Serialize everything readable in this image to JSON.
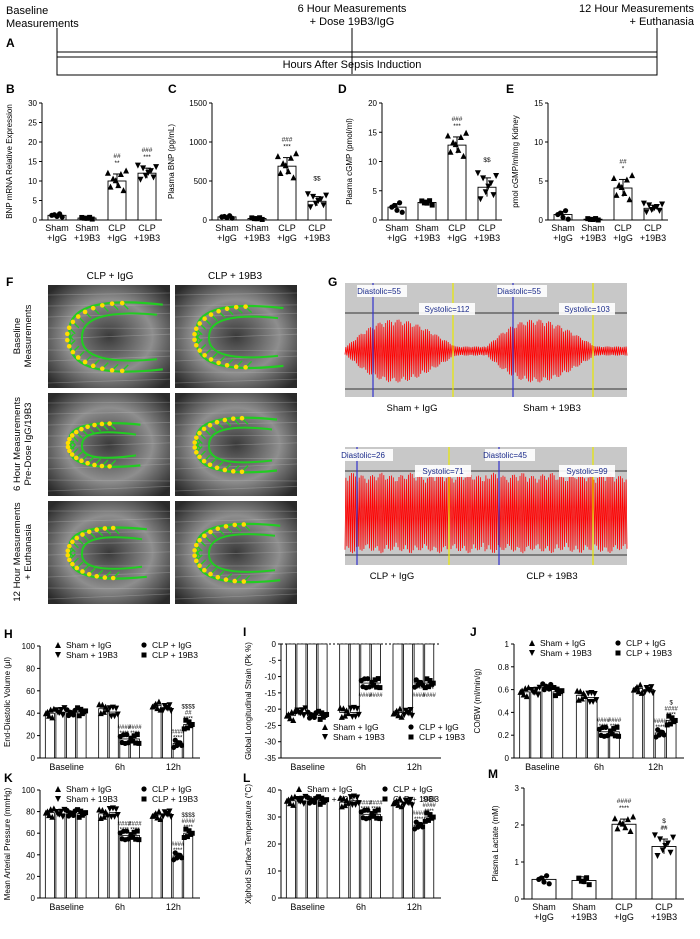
{
  "figure": {
    "timeline": {
      "panel_letter": "A",
      "left_label": [
        "Baseline",
        "Measurements"
      ],
      "mid_label": [
        "6 Hour Measurements",
        "+ Dose 19B3/IgG"
      ],
      "right_label": [
        "12 Hour Measurements",
        "+ Euthanasia"
      ],
      "axis_label": "Hours After Sepsis Induction"
    },
    "group_labels": {
      "sham_igg": [
        "Sham",
        "+IgG"
      ],
      "sham_19b3": [
        "Sham",
        "+19B3"
      ],
      "clp_igg": [
        "CLP",
        "+IgG"
      ],
      "clp_19b3": [
        "CLP",
        "+19B3"
      ]
    },
    "panel_f": {
      "letter": "F",
      "col_titles": [
        "CLP + IgG",
        "CLP + 19B3"
      ],
      "row_labels": [
        [
          "Baseline",
          "Measurements"
        ],
        [
          "6 Hour Measurements",
          "Pre-Dose IgG/19B3"
        ],
        [
          "12 Hour Measurements",
          "+ Euthanasia"
        ]
      ]
    },
    "panel_g": {
      "letter": "G",
      "traces": [
        {
          "caption": "Sham + IgG",
          "diastolic": "Diastolic=55",
          "systolic": "Systolic=112"
        },
        {
          "caption": "Sham + 19B3",
          "diastolic": "Diastolic=55",
          "systolic": "Systolic=103"
        },
        {
          "caption": "CLP + IgG",
          "diastolic": "Diastolic=26",
          "systolic": "Systolic=71"
        },
        {
          "caption": "CLP + 19B3",
          "diastolic": "Diastolic=45",
          "systolic": "Systolic=99"
        }
      ]
    },
    "legend_entries": [
      "Sham + IgG",
      "Sham + 19B3",
      "CLP + IgG",
      "CLP + 19B3"
    ],
    "timepoints": [
      "Baseline",
      "6h",
      "12h"
    ],
    "colors": {
      "trace": "#ff0000",
      "trace_bg": "#c8c8c8",
      "dia_line": "#3333cc",
      "sys_line": "#e8e800",
      "tracking": "#22cc22",
      "tracking_dot": "#ffdd00"
    }
  },
  "chart_data": [
    {
      "panel": "B",
      "type": "bar",
      "ylabel": "BNP mRNA Relative Expression",
      "ylim": [
        0,
        30
      ],
      "yticks": [
        0,
        5,
        10,
        15,
        20,
        25,
        30
      ],
      "categories": [
        "Sham +IgG",
        "Sham +19B3",
        "CLP +IgG",
        "CLP +19B3"
      ],
      "values": [
        1.2,
        0.5,
        10.0,
        12.0
      ],
      "errors": [
        0.3,
        0.2,
        1.8,
        1.3
      ],
      "annotations": [
        [
          "",
          ""
        ],
        [
          "",
          ""
        ],
        [
          "##",
          "**"
        ],
        [
          "###",
          "***"
        ]
      ]
    },
    {
      "panel": "C",
      "type": "bar",
      "ylabel": "Plasma BNP (pg/mL)",
      "ylim": [
        0,
        1500
      ],
      "yticks": [
        0,
        500,
        1000,
        1500
      ],
      "categories": [
        "Sham +IgG",
        "Sham +19B3",
        "CLP +IgG",
        "CLP +19B3"
      ],
      "values": [
        40,
        20,
        690,
        240
      ],
      "errors": [
        8,
        5,
        110,
        60
      ],
      "annotations": [
        [
          "",
          ""
        ],
        [
          "",
          ""
        ],
        [
          "###",
          "***"
        ],
        [
          "$$",
          ""
        ]
      ]
    },
    {
      "panel": "D",
      "type": "bar",
      "ylabel": "Plasma cGMP (pmol/ml)",
      "ylim": [
        0,
        20
      ],
      "yticks": [
        0,
        5,
        10,
        15,
        20
      ],
      "categories": [
        "Sham +IgG",
        "Sham +19B3",
        "CLP +IgG",
        "CLP +19B3"
      ],
      "values": [
        2.2,
        3.0,
        12.8,
        5.6
      ],
      "errors": [
        0.6,
        0.4,
        1.4,
        1.6
      ],
      "annotations": [
        [
          "",
          ""
        ],
        [
          "",
          ""
        ],
        [
          "###",
          "***"
        ],
        [
          "$$",
          ""
        ]
      ]
    },
    {
      "panel": "E",
      "type": "bar",
      "ylabel": "pmol cGMP/ml/mg Kidney",
      "ylim": [
        0,
        15
      ],
      "yticks": [
        0,
        5,
        10,
        15
      ],
      "categories": [
        "Sham +IgG",
        "Sham +19B3",
        "CLP +IgG",
        "CLP +19B3"
      ],
      "values": [
        0.7,
        0.1,
        4.1,
        1.5
      ],
      "errors": [
        0.4,
        0.05,
        1.1,
        0.4
      ],
      "annotations": [
        [
          "",
          ""
        ],
        [
          "",
          ""
        ],
        [
          "##",
          "*"
        ],
        [
          "",
          ""
        ]
      ]
    },
    {
      "panel": "H",
      "type": "bar",
      "ylabel": "End-Diastolic Volume (μl)",
      "ylim": [
        0,
        100
      ],
      "yticks": [
        0,
        20,
        40,
        60,
        80,
        100
      ],
      "categories": [
        "Baseline",
        "6h",
        "12h"
      ],
      "series": [
        {
          "name": "Sham + IgG",
          "values": [
            40,
            44,
            47
          ]
        },
        {
          "name": "Sham + 19B3",
          "values": [
            41,
            41,
            45
          ]
        },
        {
          "name": "CLP + IgG",
          "values": [
            40,
            17,
            13
          ]
        },
        {
          "name": "CLP + 19B3",
          "values": [
            41,
            17,
            30
          ]
        }
      ],
      "annotations": [
        [
          "",
          "",
          "",
          ""
        ],
        [
          "",
          "",
          "####\n****",
          "####\n****"
        ],
        [
          "",
          "",
          "####\n****",
          "$$$$\n##\n****"
        ]
      ]
    },
    {
      "panel": "I",
      "type": "bar",
      "ylabel": "Global Longitudinal Strain (Pk %)",
      "ylim": [
        -35,
        0
      ],
      "yticks": [
        0,
        -5,
        -10,
        -15,
        -20,
        -25,
        -30,
        -35
      ],
      "categories": [
        "Baseline",
        "6h",
        "12h"
      ],
      "series": [
        {
          "name": "Sham + IgG",
          "values": [
            -22,
            -21,
            -21
          ]
        },
        {
          "name": "Sham + 19B3",
          "values": [
            -21,
            -21,
            -21
          ]
        },
        {
          "name": "CLP + IgG",
          "values": [
            -22,
            -12,
            -12
          ]
        },
        {
          "name": "CLP + 19B3",
          "values": [
            -22,
            -12,
            -12
          ]
        }
      ],
      "annotations": [
        [
          "",
          "",
          "",
          ""
        ],
        [
          "",
          "",
          "****\n####",
          "****\n####"
        ],
        [
          "",
          "",
          "****\n####",
          "****\n####"
        ]
      ]
    },
    {
      "panel": "J",
      "type": "bar",
      "ylabel": "CO/BW (ml/min/g)",
      "ylim": [
        0,
        1.0
      ],
      "yticks": [
        0,
        0.2,
        0.4,
        0.6,
        0.8,
        1.0
      ],
      "categories": [
        "Baseline",
        "6h",
        "12h"
      ],
      "series": [
        {
          "name": "Sham + IgG",
          "values": [
            0.58,
            0.55,
            0.61
          ]
        },
        {
          "name": "Sham + 19B3",
          "values": [
            0.58,
            0.53,
            0.6
          ]
        },
        {
          "name": "CLP + IgG",
          "values": [
            0.62,
            0.23,
            0.22
          ]
        },
        {
          "name": "CLP + 19B3",
          "values": [
            0.58,
            0.23,
            0.33
          ]
        }
      ],
      "annotations": [
        [
          "",
          "",
          "",
          ""
        ],
        [
          "",
          "",
          "####\n****",
          "####\n****"
        ],
        [
          "",
          "",
          "####\n****",
          "$\n####\n****"
        ]
      ]
    },
    {
      "panel": "K",
      "type": "bar",
      "ylabel": "Mean Arterial Pressure (mmHg)",
      "ylim": [
        0,
        100
      ],
      "yticks": [
        0,
        20,
        40,
        60,
        80,
        100
      ],
      "categories": [
        "Baseline",
        "6h",
        "12h"
      ],
      "series": [
        {
          "name": "Sham + IgG",
          "values": [
            79,
            78,
            77
          ]
        },
        {
          "name": "Sham + 19B3",
          "values": [
            78,
            79,
            78
          ]
        },
        {
          "name": "CLP + IgG",
          "values": [
            78,
            58,
            39
          ]
        },
        {
          "name": "CLP + 19B3",
          "values": [
            78,
            58,
            60
          ]
        }
      ],
      "annotations": [
        [
          "",
          "",
          "",
          ""
        ],
        [
          "",
          "",
          "####\n****",
          "####\n****"
        ],
        [
          "",
          "",
          "####\n****",
          "$$$$\n####\n****"
        ]
      ]
    },
    {
      "panel": "L",
      "type": "bar",
      "ylabel": "Xiphoid Surface Temperature (°C)",
      "ylim": [
        0,
        40
      ],
      "yticks": [
        0,
        10,
        20,
        30,
        40
      ],
      "categories": [
        "Baseline",
        "6h",
        "12h"
      ],
      "series": [
        {
          "name": "Sham + IgG",
          "values": [
            36,
            35.5,
            35.5
          ]
        },
        {
          "name": "Sham + 19B3",
          "values": [
            36,
            36,
            35.5
          ]
        },
        {
          "name": "CLP + IgG",
          "values": [
            36,
            31,
            27
          ]
        },
        {
          "name": "CLP + 19B3",
          "values": [
            36,
            31,
            30
          ]
        }
      ],
      "annotations": [
        [
          "",
          "",
          "",
          ""
        ],
        [
          "",
          "",
          "####\n****",
          "####\n****"
        ],
        [
          "",
          "",
          "####\n****",
          "$$$$\n####\n****"
        ]
      ]
    },
    {
      "panel": "M",
      "type": "bar",
      "ylabel": "Plasma Lactate (mM)",
      "ylim": [
        0,
        3
      ],
      "yticks": [
        0,
        1,
        2,
        3
      ],
      "categories": [
        "Sham +IgG",
        "Sham +19B3",
        "CLP +IgG",
        "CLP +19B3"
      ],
      "values": [
        0.53,
        0.5,
        2.02,
        1.42
      ],
      "errors": [
        0.08,
        0.1,
        0.14,
        0.2
      ],
      "annotations": [
        [
          "",
          ""
        ],
        [
          "",
          ""
        ],
        [
          "####",
          "****"
        ],
        [
          "$\n##",
          "**"
        ]
      ]
    }
  ]
}
